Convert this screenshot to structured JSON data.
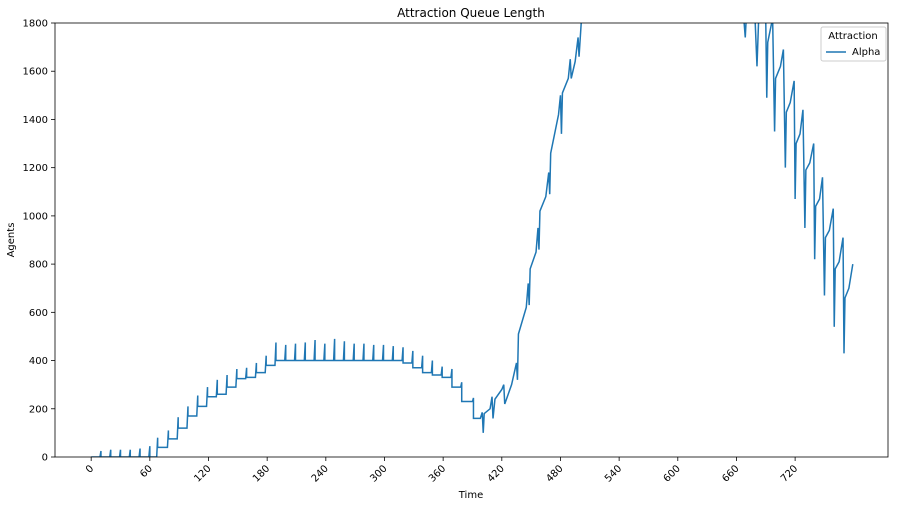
{
  "chart_data": {
    "type": "line",
    "title": "Attraction Queue Length",
    "x_label": "Time",
    "y_label": "Agents",
    "legend_title": "Attraction",
    "legend_loc": "upper right",
    "x": [
      0,
      9,
      10,
      10,
      19,
      20,
      20,
      29,
      30,
      30,
      39,
      40,
      40,
      49,
      50,
      50,
      59,
      60,
      60,
      67,
      68,
      68,
      78,
      79,
      79,
      88,
      89,
      89,
      98,
      99,
      99,
      108,
      109,
      109,
      118,
      119,
      119,
      128,
      129,
      129,
      138,
      139,
      139,
      148,
      149,
      149,
      158,
      159,
      159,
      168,
      169,
      169,
      178,
      179,
      179,
      188,
      189,
      189,
      198,
      199,
      199,
      208,
      209,
      209,
      218,
      219,
      219,
      228,
      229,
      229,
      238,
      239,
      239,
      248,
      249,
      249,
      258,
      259,
      259,
      268,
      269,
      269,
      278,
      279,
      279,
      288,
      289,
      289,
      298,
      299,
      299,
      308,
      309,
      309,
      318,
      319,
      319,
      328,
      329,
      329,
      338,
      339,
      339,
      348,
      349,
      349,
      358,
      359,
      359,
      368,
      369,
      369,
      378,
      379,
      379,
      390,
      391,
      391,
      398,
      400,
      401,
      402,
      408,
      410,
      411,
      413,
      420,
      422,
      423,
      430,
      435,
      436,
      437,
      445,
      447,
      448,
      449,
      455,
      457,
      458,
      459,
      465,
      468,
      469,
      470,
      478,
      480,
      481,
      482,
      488,
      490,
      491,
      495,
      498,
      499,
      502,
      580,
      665,
      669,
      671,
      679,
      681,
      683,
      690,
      691,
      692,
      697,
      699,
      700,
      705,
      708,
      710,
      711,
      715,
      719,
      720,
      721,
      725,
      728,
      730,
      731,
      735,
      739,
      740,
      741,
      745,
      748,
      750,
      751,
      755,
      759,
      760,
      761,
      765,
      769,
      770,
      771,
      775,
      779
    ],
    "series": [
      {
        "name": "Alpha",
        "color": "#1f77b4",
        "values": [
          0,
          0,
          25,
          0,
          0,
          30,
          0,
          0,
          30,
          0,
          0,
          30,
          0,
          0,
          35,
          0,
          0,
          45,
          0,
          0,
          80,
          40,
          40,
          110,
          75,
          75,
          165,
          120,
          120,
          210,
          170,
          170,
          255,
          210,
          210,
          290,
          250,
          250,
          320,
          260,
          260,
          340,
          290,
          290,
          365,
          325,
          325,
          370,
          330,
          330,
          390,
          350,
          350,
          420,
          380,
          380,
          475,
          400,
          400,
          465,
          400,
          400,
          470,
          400,
          400,
          475,
          400,
          400,
          485,
          400,
          400,
          470,
          400,
          400,
          490,
          400,
          400,
          480,
          400,
          400,
          470,
          400,
          400,
          470,
          400,
          400,
          465,
          400,
          400,
          465,
          400,
          400,
          460,
          400,
          400,
          455,
          390,
          390,
          440,
          370,
          370,
          420,
          350,
          350,
          400,
          340,
          340,
          375,
          330,
          330,
          365,
          290,
          290,
          310,
          230,
          230,
          245,
          160,
          160,
          185,
          100,
          180,
          200,
          250,
          160,
          240,
          280,
          300,
          220,
          300,
          390,
          320,
          510,
          620,
          720,
          630,
          780,
          850,
          950,
          860,
          1020,
          1080,
          1180,
          1090,
          1260,
          1420,
          1500,
          1340,
          1510,
          1570,
          1650,
          1570,
          1640,
          1740,
          1660,
          1850,
          2150,
          1950,
          1740,
          1900,
          1820,
          1620,
          1850,
          1800,
          1490,
          1720,
          1820,
          1350,
          1570,
          1620,
          1690,
          1200,
          1430,
          1470,
          1560,
          1070,
          1300,
          1340,
          1440,
          950,
          1190,
          1220,
          1300,
          820,
          1040,
          1070,
          1160,
          670,
          910,
          940,
          1030,
          540,
          780,
          810,
          910,
          430,
          660,
          700,
          800
        ]
      }
    ],
    "xlim": [
      -37,
      815
    ],
    "ylim": [
      0,
      1800
    ],
    "xticks": [
      0,
      60,
      120,
      180,
      240,
      300,
      360,
      420,
      480,
      540,
      600,
      660,
      720
    ],
    "yticks": [
      0,
      200,
      400,
      600,
      800,
      1000,
      1200,
      1400,
      1600,
      1800
    ]
  }
}
